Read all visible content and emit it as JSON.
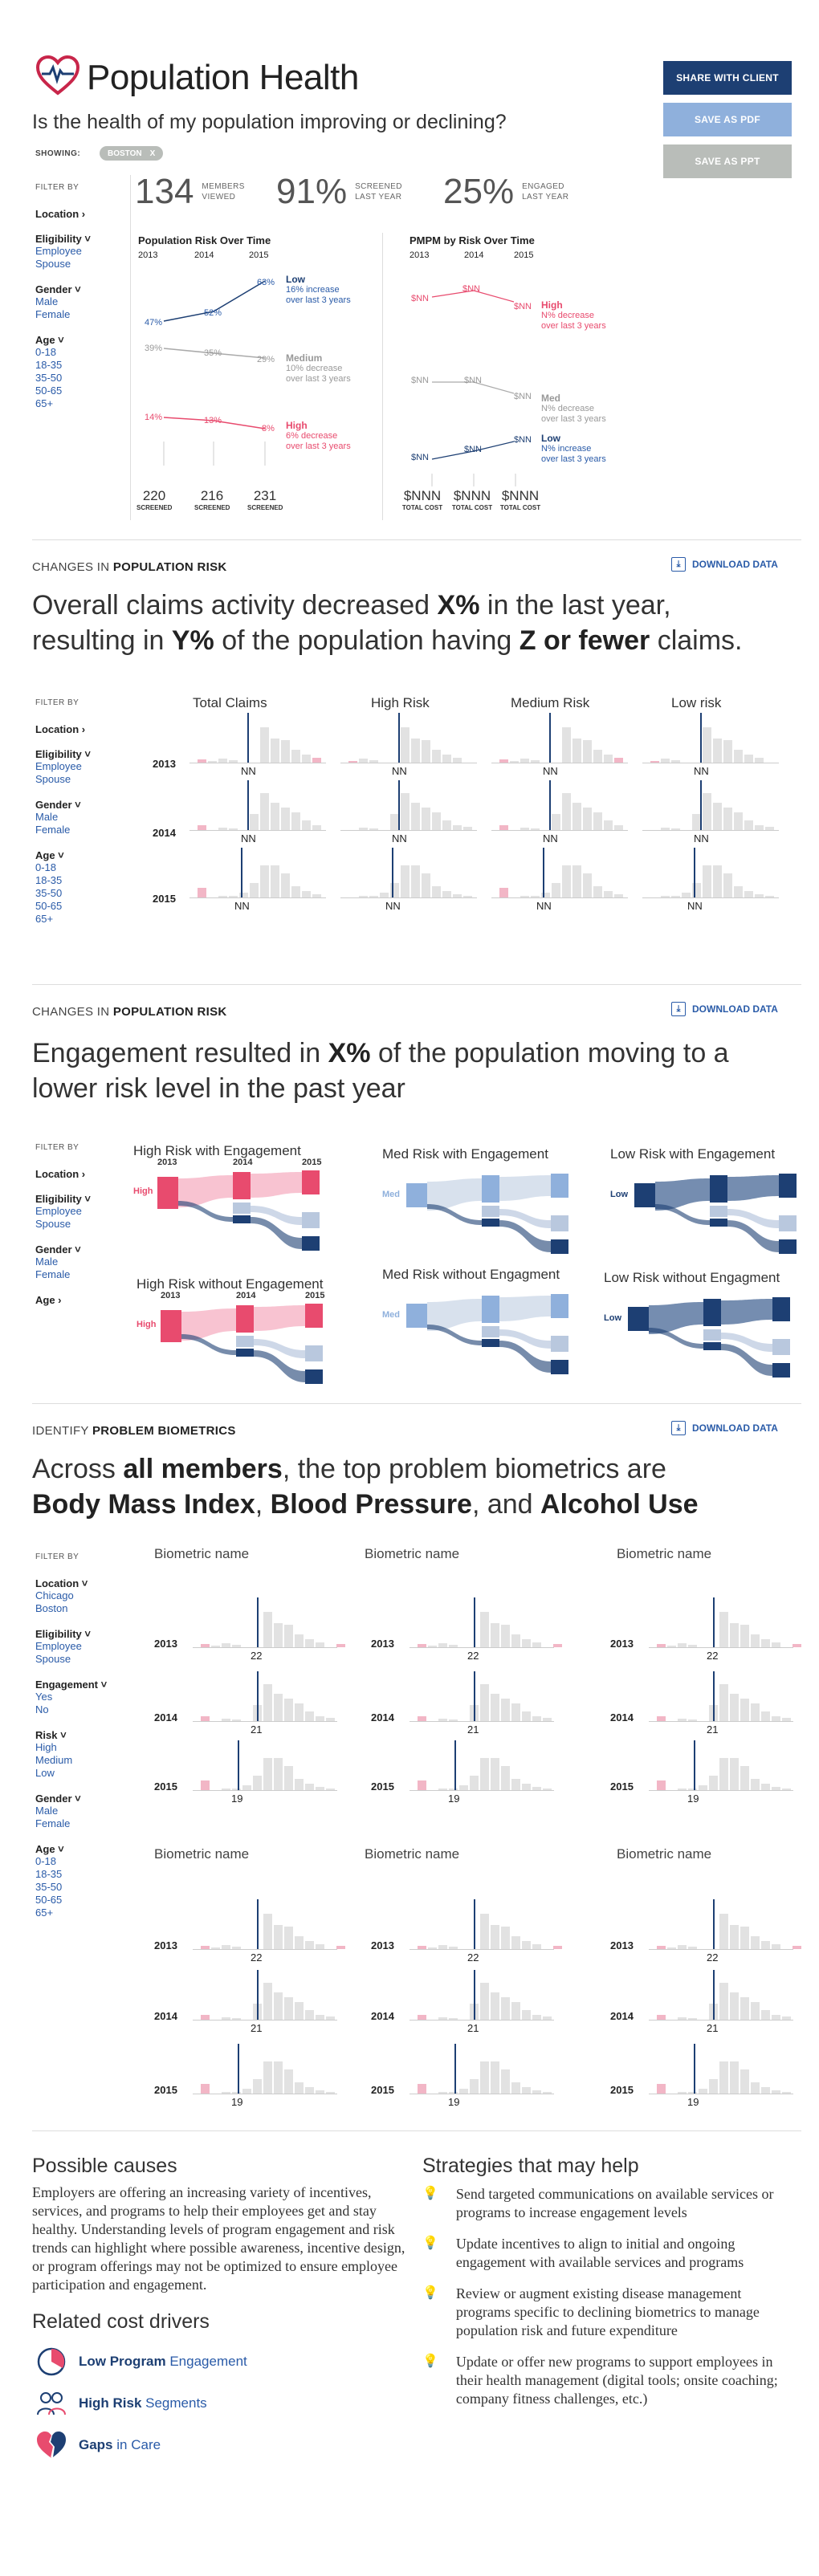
{
  "header": {
    "title": "Population Health",
    "question": "Is the health of my population improving or declining?",
    "showing_label": "SHOWING:",
    "showing_chip": "BOSTON",
    "chip_x": "X",
    "buttons": {
      "share": "SHARE WITH CLIENT",
      "pdf": "SAVE AS PDF",
      "ppt": "SAVE AS PPT"
    },
    "colors": {
      "navy": "#1d3f73",
      "blue": "#2a5ba8",
      "light_blue": "#8fb0dc",
      "gray_btn": "#b9bdb9",
      "red": "#e84b6e",
      "pink": "#f2b6c6"
    }
  },
  "filters": {
    "label": "FILTER BY",
    "location": "Location",
    "eligibility": "Eligibility",
    "employee": "Employee",
    "spouse": "Spouse",
    "gender": "Gender",
    "male": "Male",
    "female": "Female",
    "age": "Age",
    "ages": [
      "0-18",
      "18-35",
      "35-50",
      "50-65",
      "65+"
    ],
    "engagement": "Engagement",
    "yes": "Yes",
    "no": "No",
    "risk": "Risk",
    "high": "High",
    "medium": "Medium",
    "low": "Low",
    "chicago": "Chicago",
    "boston": "Boston"
  },
  "stats": [
    {
      "value": "134",
      "label1": "MEMBERS",
      "label2": "VIEWED"
    },
    {
      "value": "91%",
      "label1": "SCREENED",
      "label2": "LAST YEAR"
    },
    {
      "value": "25%",
      "label1": "ENGAGED",
      "label2": "LAST YEAR"
    }
  ],
  "risk_chart": {
    "title": "Population Risk Over Time",
    "years": [
      "2013",
      "2014",
      "2015"
    ],
    "low": {
      "values": [
        "47%",
        "52%",
        "63%"
      ],
      "label": "Low",
      "desc1": "16% increase",
      "desc2": "over last 3 years"
    },
    "medium": {
      "values": [
        "39%",
        "35%",
        "29%"
      ],
      "label": "Medium",
      "desc1": "10% decrease",
      "desc2": "over last 3 years"
    },
    "high": {
      "values": [
        "14%",
        "13%",
        "8%"
      ],
      "label": "High",
      "desc1": "6% decrease",
      "desc2": "over last 3 years"
    },
    "screened": [
      {
        "n": "220",
        "l": "SCREENED"
      },
      {
        "n": "216",
        "l": "SCREENED"
      },
      {
        "n": "231",
        "l": "SCREENED"
      }
    ]
  },
  "pmpm_chart": {
    "title": "PMPM by Risk Over Time",
    "years": [
      "2013",
      "2014",
      "2015"
    ],
    "nn": "$NN",
    "high": {
      "label": "High",
      "desc1": "N% decrease",
      "desc2": "over last 3 years"
    },
    "med": {
      "label": "Med",
      "desc1": "N% decrease",
      "desc2": "over last 3 years"
    },
    "low": {
      "label": "Low",
      "desc1": "N% increase",
      "desc2": "over last 3 years"
    },
    "totals": [
      {
        "n": "$NNN",
        "l": "TOTAL COST"
      },
      {
        "n": "$NNN",
        "l": "TOTAL COST"
      },
      {
        "n": "$NNN",
        "l": "TOTAL COST"
      }
    ]
  },
  "sec1": {
    "label_pre": "CHANGES IN ",
    "label_b": "POPULATION RISK",
    "download": "DOWNLOAD DATA",
    "h_a": "Overall claims activity decreased ",
    "h_b1": "X%",
    "h_c": " in the last year,",
    "h_d": "resulting in ",
    "h_b2": "Y%",
    "h_e": " of the population having ",
    "h_b3": "Z or fewer",
    "h_f": " claims.",
    "cols": [
      "Total Claims",
      "High Risk",
      "Medium Risk",
      "Low risk"
    ],
    "years": [
      "2013",
      "2014",
      "2015"
    ],
    "nn": "NN"
  },
  "sec2": {
    "label_pre": "CHANGES IN ",
    "label_b": "POPULATION RISK",
    "download": "DOWNLOAD DATA",
    "h_a": "Engagement resulted in ",
    "h_b": "X%",
    "h_c": " of the population moving to a",
    "h_d": "lower risk level in the past year",
    "charts": [
      "High Risk with Engagement",
      "Med Risk with Engagement",
      "Low Risk with Engagement",
      "High Risk without Engagement",
      "Med Risk without Engagment",
      "Low Risk without Engagment"
    ],
    "years": [
      "2013",
      "2014",
      "2015"
    ],
    "high": "High",
    "med": "Med",
    "low": "Low"
  },
  "sec3": {
    "label_pre": "IDENTIFY ",
    "label_b": "PROBLEM BIOMETRICS",
    "download": "DOWNLOAD DATA",
    "h_a": "Across ",
    "h_b1": "all members",
    "h_c": ", the top problem biometrics are",
    "h_b2": "Body Mass Index",
    "h_d": ", ",
    "h_b3": "Blood Pressure",
    "h_e": ", and ",
    "h_b4": "Alcohol Use",
    "bio_name": "Biometric name",
    "years": [
      "2013",
      "2014",
      "2015"
    ],
    "vals": [
      "22",
      "21",
      "19"
    ]
  },
  "causes": {
    "title": "Possible causes",
    "text": "Employers are offering an increasing variety of incentives, services, and programs to help their employees get and stay healthy. Understanding levels of program engagement and risk trends can highlight where possible awareness, incentive design, or program offerings may not be optimized to ensure employee participation and engagement.",
    "drivers_title": "Related cost drivers",
    "drivers": [
      {
        "b": "Low Program",
        "r": " Engagement",
        "icon": "pie-icon"
      },
      {
        "b": "High Risk",
        "r": " Segments",
        "icon": "people-icon"
      },
      {
        "b": "Gaps",
        "r": " in Care",
        "icon": "heart-broken-icon"
      }
    ]
  },
  "strategies": {
    "title": "Strategies that may help",
    "items": [
      "Send targeted communications on available services or programs to increase engagement levels",
      "Update incentives to align to initial and ongoing engagement with available services and programs",
      "Review or augment existing disease management programs specific to declining biometrics to manage population risk and future expenditure",
      "Update or offer new programs to support employees in their health management (digital tools; onsite coaching; company fitness challenges, etc.)"
    ]
  }
}
